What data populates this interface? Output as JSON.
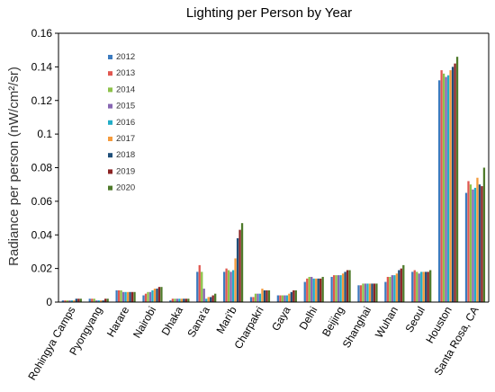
{
  "chart_data": {
    "type": "bar",
    "title": "Lighting per Person by Year",
    "xlabel": "",
    "ylabel": "Radiance per person (nW/cm²/sr)",
    "ylim": [
      0,
      0.16
    ],
    "yticks": [
      0,
      0.02,
      0.04,
      0.06,
      0.08,
      0.1,
      0.12,
      0.14,
      0.16
    ],
    "ytick_labels": [
      "0",
      "0.02",
      "0.04",
      "0.06",
      "0.08",
      "0.1",
      "0.12",
      "0.14",
      "0.16"
    ],
    "grid": false,
    "legend_position": "top-left",
    "categories": [
      "Rohingya Camps",
      "Pyongyang",
      "Harare",
      "Nairobi",
      "Dhaka",
      "Sana'a",
      "Mari'b",
      "Charpakri",
      "Gaya",
      "Delhi",
      "Beijing",
      "Shanghai",
      "Wuhan",
      "Seoul",
      "Houston",
      "Santa Rosa, CA"
    ],
    "series": [
      {
        "name": "2012",
        "color": "#3C7BBF",
        "values": [
          0.001,
          0.002,
          0.007,
          0.004,
          0.001,
          0.018,
          0.018,
          0.003,
          0.004,
          0.012,
          0.015,
          0.01,
          0.012,
          0.018,
          0.132,
          0.065
        ]
      },
      {
        "name": "2013",
        "color": "#E15750",
        "values": [
          0.001,
          0.002,
          0.007,
          0.005,
          0.002,
          0.022,
          0.02,
          0.003,
          0.004,
          0.014,
          0.016,
          0.01,
          0.015,
          0.019,
          0.138,
          0.072
        ]
      },
      {
        "name": "2014",
        "color": "#8DC24A",
        "values": [
          0.001,
          0.002,
          0.007,
          0.006,
          0.002,
          0.018,
          0.019,
          0.005,
          0.004,
          0.015,
          0.016,
          0.011,
          0.015,
          0.018,
          0.136,
          0.07
        ]
      },
      {
        "name": "2015",
        "color": "#8766B2",
        "values": [
          0.001,
          0.001,
          0.006,
          0.006,
          0.002,
          0.008,
          0.018,
          0.005,
          0.004,
          0.015,
          0.016,
          0.011,
          0.016,
          0.017,
          0.134,
          0.067
        ]
      },
      {
        "name": "2016",
        "color": "#22ADC7",
        "values": [
          0.001,
          0.001,
          0.006,
          0.007,
          0.002,
          0.002,
          0.019,
          0.005,
          0.004,
          0.014,
          0.016,
          0.011,
          0.016,
          0.018,
          0.135,
          0.068
        ]
      },
      {
        "name": "2017",
        "color": "#F59B3C",
        "values": [
          0.001,
          0.001,
          0.006,
          0.008,
          0.002,
          0.003,
          0.026,
          0.008,
          0.005,
          0.014,
          0.017,
          0.011,
          0.017,
          0.018,
          0.138,
          0.074
        ]
      },
      {
        "name": "2018",
        "color": "#1F4E79",
        "values": [
          0.002,
          0.001,
          0.006,
          0.008,
          0.002,
          0.003,
          0.038,
          0.007,
          0.006,
          0.014,
          0.018,
          0.011,
          0.019,
          0.018,
          0.14,
          0.07
        ]
      },
      {
        "name": "2019",
        "color": "#8B2323",
        "values": [
          0.002,
          0.002,
          0.006,
          0.009,
          0.002,
          0.004,
          0.043,
          0.007,
          0.007,
          0.014,
          0.019,
          0.011,
          0.02,
          0.018,
          0.142,
          0.069
        ]
      },
      {
        "name": "2020",
        "color": "#4E7A2A",
        "values": [
          0.002,
          0.002,
          0.006,
          0.009,
          0.002,
          0.005,
          0.047,
          0.007,
          0.007,
          0.015,
          0.019,
          0.011,
          0.022,
          0.019,
          0.146,
          0.08
        ]
      }
    ]
  }
}
